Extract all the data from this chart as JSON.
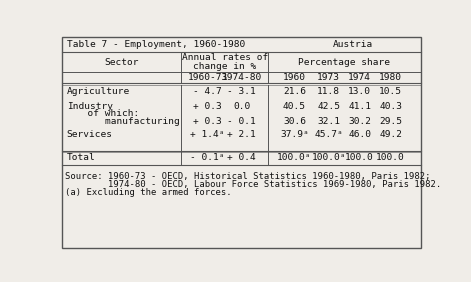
{
  "title_left": "Table 7 - Employment, 1960-1980",
  "title_right": "Austria",
  "header1_sector": "Sector",
  "header1_annual": "Annual rates of\nchange in %",
  "header1_pct": "Percentage share",
  "header2": [
    "1960-73",
    "1974-80",
    "1960",
    "1973",
    "1974",
    "1980"
  ],
  "rows": [
    [
      "Agriculture",
      "- 4.7",
      "- 3.1",
      "21.6",
      "11.8",
      "13.0",
      "10.5"
    ],
    [
      "Industry",
      "+ 0.3",
      "0.0",
      "40.5",
      "42.5",
      "41.1",
      "40.3"
    ],
    [
      "  of which:",
      "",
      "",
      "",
      "",
      "",
      ""
    ],
    [
      "    manufacturing",
      "+ 0.3",
      "- 0.1",
      "30.6",
      "32.1",
      "30.2",
      "29.5"
    ],
    [
      "Services",
      "+ 1.4ᵃ",
      "+ 2.1",
      "37.9ᵃ",
      "45.7ᵃ",
      "46.0",
      "49.2"
    ]
  ],
  "total_row": [
    "Total",
    "- 0.1ᵃ",
    "+ 0.4",
    "100.0ᵃ",
    "100.0ᵃ",
    "100.0",
    "100.0"
  ],
  "footnote_lines": [
    "Source: 1960-73 - OECD, Historical Statistics 1960-1980, Paris 1982;",
    "        1974-80 - OECD, Labour Force Statistics 1969-1980, Paris 1982.",
    "(a) Excluding the armed forces."
  ],
  "bg_color": "#f0ede8",
  "line_color": "#555555",
  "text_color": "#111111",
  "font_size": 6.8,
  "small_font_size": 6.4
}
